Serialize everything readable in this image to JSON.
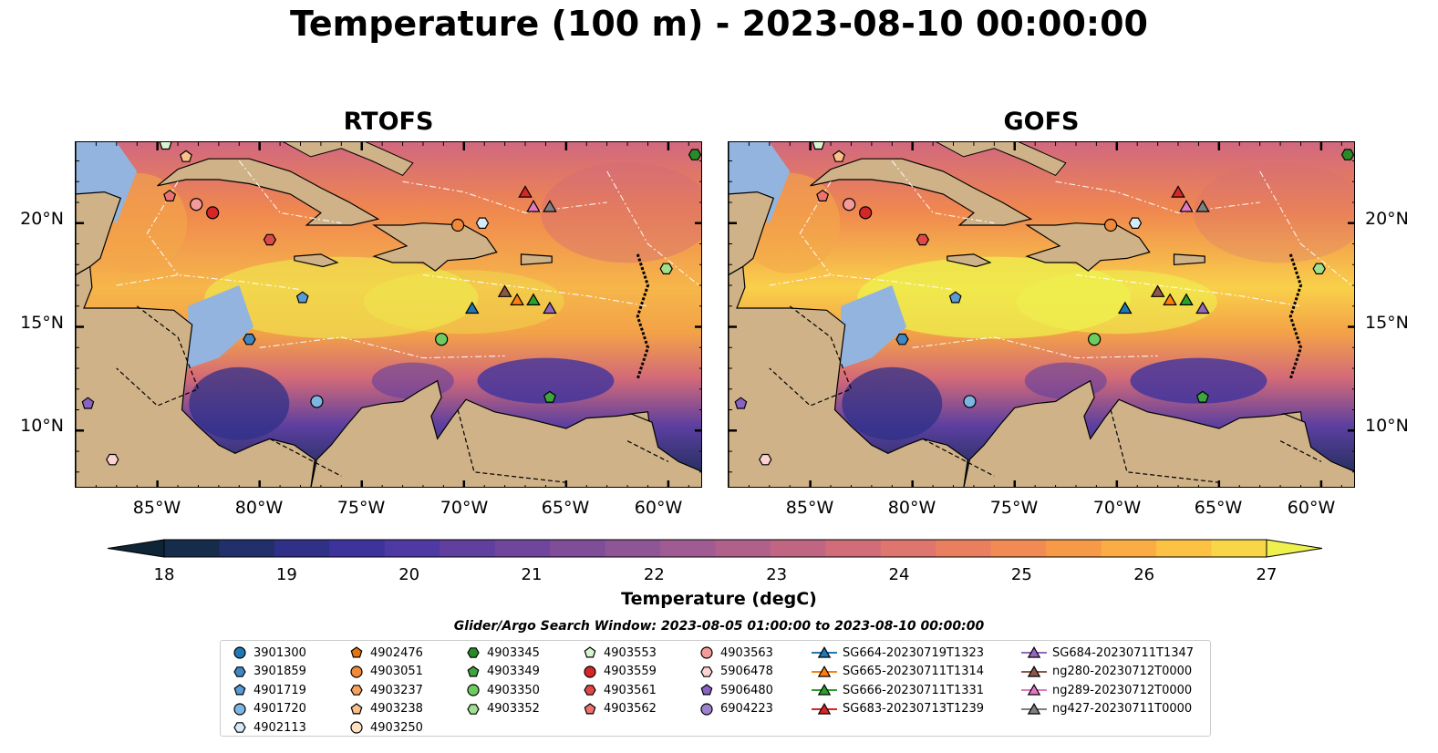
{
  "title": "Temperature (100 m) - 2023-08-10 00:00:00",
  "panels": [
    {
      "title": "RTOFS"
    },
    {
      "title": "GOFS"
    }
  ],
  "lat_labels": [
    "20°N",
    "15°N",
    "10°N"
  ],
  "lon_labels": [
    "85°W",
    "80°W",
    "75°W",
    "70°W",
    "65°W",
    "60°W"
  ],
  "colorbar": {
    "label": "Temperature (degC)",
    "ticks": [
      "18",
      "19",
      "20",
      "21",
      "22",
      "23",
      "24",
      "25",
      "26",
      "27"
    ],
    "colors": [
      "#0f2435",
      "#162c4b",
      "#212f6a",
      "#2f3088",
      "#3e339d",
      "#4f3aa3",
      "#603f9f",
      "#70469c",
      "#804e99",
      "#8f5696",
      "#a05b92",
      "#b0618b",
      "#c06683",
      "#d06d79",
      "#de756e",
      "#ea7f60",
      "#f28b53",
      "#f79a48",
      "#fbad43",
      "#fdc243",
      "#f9d647",
      "#eef04e"
    ]
  },
  "search_window": "Glider/Argo Search Window: 2023-08-05 01:00:00 to 2023-08-10 00:00:00",
  "legend": [
    {
      "label": "3901300",
      "marker": "circle",
      "color": "#1f77b4"
    },
    {
      "label": "3901859",
      "marker": "hexagon",
      "color": "#3f88c5"
    },
    {
      "label": "4901719",
      "marker": "pentagon",
      "color": "#5a9bd5"
    },
    {
      "label": "4901720",
      "marker": "circle",
      "color": "#7cb7e4"
    },
    {
      "label": "4902113",
      "marker": "hexagon",
      "color": "#d6ebf8"
    },
    {
      "label": "4902476",
      "marker": "pentagon",
      "color": "#e6740c"
    },
    {
      "label": "4903051",
      "marker": "circle",
      "color": "#f08a3a"
    },
    {
      "label": "4903237",
      "marker": "hexagon",
      "color": "#f7a25e"
    },
    {
      "label": "4903238",
      "marker": "pentagon",
      "color": "#fbbf8a"
    },
    {
      "label": "4903250",
      "marker": "circle",
      "color": "#fde1c2"
    },
    {
      "label": "4903345",
      "marker": "hexagon",
      "color": "#2a8a2a"
    },
    {
      "label": "4903349",
      "marker": "pentagon",
      "color": "#3ea63e"
    },
    {
      "label": "4903350",
      "marker": "circle",
      "color": "#6dcc5f"
    },
    {
      "label": "4903352",
      "marker": "hexagon",
      "color": "#9fe08f"
    },
    {
      "label": "4903553",
      "marker": "pentagon",
      "color": "#d9f5cf"
    },
    {
      "label": "4903559",
      "marker": "circle",
      "color": "#d62728"
    },
    {
      "label": "4903561",
      "marker": "hexagon",
      "color": "#e04848"
    },
    {
      "label": "4903562",
      "marker": "pentagon",
      "color": "#ee7272"
    },
    {
      "label": "4903563",
      "marker": "circle",
      "color": "#f59a9a"
    },
    {
      "label": "5906478",
      "marker": "hexagon",
      "color": "#fcd2d2"
    },
    {
      "label": "5906480",
      "marker": "pentagon",
      "color": "#8a63c2"
    },
    {
      "label": "6904223",
      "marker": "circle",
      "color": "#9e82d0"
    },
    {
      "label": "SG664-20230719T1323",
      "marker": "triangle-line",
      "color": "#1f77b4"
    },
    {
      "label": "SG665-20230711T1314",
      "marker": "triangle-line",
      "color": "#ff7f0e"
    },
    {
      "label": "SG666-20230711T1331",
      "marker": "triangle-line",
      "color": "#2ca02c"
    },
    {
      "label": "SG683-20230713T1239",
      "marker": "triangle-line",
      "color": "#d62728"
    },
    {
      "label": "SG684-20230711T1347",
      "marker": "triangle-line",
      "color": "#9467bd"
    },
    {
      "label": "ng280-20230712T0000",
      "marker": "triangle-line",
      "color": "#8c564b"
    },
    {
      "label": "ng289-20230712T0000",
      "marker": "triangle-line",
      "color": "#e377c2"
    },
    {
      "label": "ng427-20230711T0000",
      "marker": "triangle-line",
      "color": "#7f7f7f"
    }
  ],
  "map_markers": [
    {
      "id": "4903553",
      "marker": "pentagon",
      "color": "#d9f5cf",
      "lon": -84.6,
      "lat": 23.8
    },
    {
      "id": "4903238",
      "marker": "pentagon",
      "color": "#fbbf8a",
      "lon": -83.6,
      "lat": 23.2
    },
    {
      "id": "4903345",
      "marker": "hexagon",
      "color": "#2a8a2a",
      "lon": -58.7,
      "lat": 23.3
    },
    {
      "id": "4903562",
      "marker": "pentagon",
      "color": "#ee7272",
      "lon": -84.4,
      "lat": 21.3
    },
    {
      "id": "4903563",
      "marker": "circle",
      "color": "#f59a9a",
      "lon": -83.1,
      "lat": 20.9
    },
    {
      "id": "4903559",
      "marker": "circle",
      "color": "#d62728",
      "lon": -82.3,
      "lat": 20.5
    },
    {
      "id": "4903561",
      "marker": "hexagon",
      "color": "#e04848",
      "lon": -79.5,
      "lat": 19.2
    },
    {
      "id": "4903051",
      "marker": "circle",
      "color": "#f08a3a",
      "lon": -70.3,
      "lat": 19.9
    },
    {
      "id": "4902113",
      "marker": "hexagon",
      "color": "#d6ebf8",
      "lon": -69.1,
      "lat": 20.0
    },
    {
      "id": "4901719",
      "marker": "pentagon",
      "color": "#5a9bd5",
      "lon": -77.9,
      "lat": 16.4
    },
    {
      "id": "4903352",
      "marker": "hexagon",
      "color": "#9fe08f",
      "lon": -60.1,
      "lat": 17.8
    },
    {
      "id": "3901859",
      "marker": "hexagon",
      "color": "#3f88c5",
      "lon": -80.5,
      "lat": 14.4
    },
    {
      "id": "4903350",
      "marker": "circle",
      "color": "#6dcc5f",
      "lon": -71.1,
      "lat": 14.4
    },
    {
      "id": "4901720",
      "marker": "circle",
      "color": "#7cb7e4",
      "lon": -77.2,
      "lat": 11.4
    },
    {
      "id": "4903349",
      "marker": "pentagon",
      "color": "#3ea63e",
      "lon": -65.8,
      "lat": 11.6
    },
    {
      "id": "5906480",
      "marker": "pentagon",
      "color": "#8a63c2",
      "lon": -88.4,
      "lat": 11.3
    },
    {
      "id": "5906478",
      "marker": "hexagon",
      "color": "#fcd2d2",
      "lon": -87.2,
      "lat": 8.6
    },
    {
      "id": "SG683",
      "marker": "triangle",
      "color": "#d62728",
      "lon": -67.0,
      "lat": 21.5
    },
    {
      "id": "ng289",
      "marker": "triangle",
      "color": "#e377c2",
      "lon": -66.6,
      "lat": 20.8
    },
    {
      "id": "ng427",
      "marker": "triangle",
      "color": "#7f7f7f",
      "lon": -65.8,
      "lat": 20.8
    },
    {
      "id": "ng280",
      "marker": "triangle",
      "color": "#8c564b",
      "lon": -68.0,
      "lat": 16.7
    },
    {
      "id": "SG665",
      "marker": "triangle",
      "color": "#ff7f0e",
      "lon": -67.4,
      "lat": 16.3
    },
    {
      "id": "SG666",
      "marker": "triangle",
      "color": "#2ca02c",
      "lon": -66.6,
      "lat": 16.3
    },
    {
      "id": "SG684",
      "marker": "triangle",
      "color": "#9467bd",
      "lon": -65.8,
      "lat": 15.9
    },
    {
      "id": "SG664",
      "marker": "triangle",
      "color": "#1f77b4",
      "lon": -69.6,
      "lat": 15.9
    }
  ]
}
